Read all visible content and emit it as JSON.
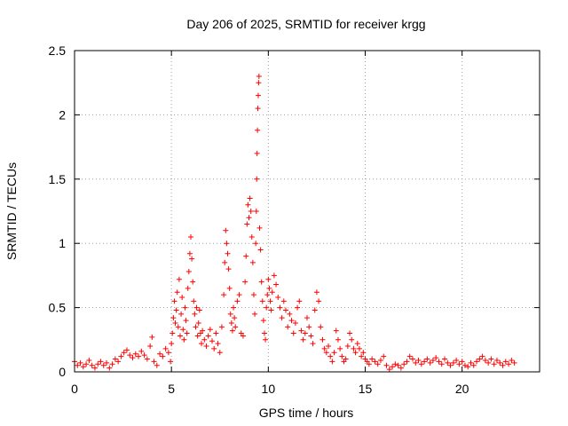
{
  "chart_data": {
    "type": "scatter",
    "title": "Day 206 of 2025, SRMTID for receiver krgg",
    "xlabel": "GPS time / hours",
    "ylabel": "SRMTID / TECUs",
    "xlim": [
      0,
      24
    ],
    "ylim": [
      0,
      2.5
    ],
    "x_ticks": [
      0,
      5,
      10,
      15,
      20
    ],
    "x_tick_labels": [
      "0",
      "5",
      "10",
      "15",
      "20"
    ],
    "y_ticks": [
      0,
      0.5,
      1,
      1.5,
      2,
      2.5
    ],
    "y_tick_labels": [
      "0",
      "0.5",
      "1",
      "1.5",
      "2",
      "2.5"
    ],
    "grid": true,
    "marker": "plus",
    "marker_color": "#ff0000",
    "series": [
      {
        "name": "SRMTID",
        "points": [
          [
            0.0,
            0.08
          ],
          [
            0.15,
            0.05
          ],
          [
            0.3,
            0.07
          ],
          [
            0.45,
            0.04
          ],
          [
            0.6,
            0.06
          ],
          [
            0.75,
            0.09
          ],
          [
            0.9,
            0.05
          ],
          [
            1.05,
            0.03
          ],
          [
            1.2,
            0.06
          ],
          [
            1.35,
            0.08
          ],
          [
            1.5,
            0.05
          ],
          [
            1.65,
            0.07
          ],
          [
            1.8,
            0.03
          ],
          [
            1.95,
            0.06
          ],
          [
            2.1,
            0.1
          ],
          [
            2.25,
            0.08
          ],
          [
            2.4,
            0.12
          ],
          [
            2.55,
            0.15
          ],
          [
            2.7,
            0.17
          ],
          [
            2.85,
            0.13
          ],
          [
            3.0,
            0.11
          ],
          [
            3.15,
            0.14
          ],
          [
            3.3,
            0.12
          ],
          [
            3.45,
            0.16
          ],
          [
            3.6,
            0.13
          ],
          [
            3.75,
            0.1
          ],
          [
            3.9,
            0.2
          ],
          [
            4.0,
            0.27
          ],
          [
            4.1,
            0.08
          ],
          [
            4.25,
            0.05
          ],
          [
            4.4,
            0.14
          ],
          [
            4.55,
            0.12
          ],
          [
            4.7,
            0.18
          ],
          [
            4.85,
            0.15
          ],
          [
            4.95,
            0.08
          ],
          [
            5.0,
            0.22
          ],
          [
            5.05,
            0.3
          ],
          [
            5.1,
            0.42
          ],
          [
            5.15,
            0.55
          ],
          [
            5.2,
            0.38
          ],
          [
            5.25,
            0.48
          ],
          [
            5.3,
            0.62
          ],
          [
            5.35,
            0.35
          ],
          [
            5.4,
            0.72
          ],
          [
            5.45,
            0.28
          ],
          [
            5.5,
            0.45
          ],
          [
            5.55,
            0.58
          ],
          [
            5.6,
            0.33
          ],
          [
            5.65,
            0.25
          ],
          [
            5.7,
            0.5
          ],
          [
            5.75,
            0.4
          ],
          [
            5.8,
            0.3
          ],
          [
            5.85,
            0.65
          ],
          [
            5.9,
            0.78
          ],
          [
            5.95,
            0.92
          ],
          [
            6.0,
            1.05
          ],
          [
            6.05,
            0.88
          ],
          [
            6.1,
            0.7
          ],
          [
            6.15,
            0.55
          ],
          [
            6.2,
            0.45
          ],
          [
            6.25,
            0.35
          ],
          [
            6.3,
            0.5
          ],
          [
            6.35,
            0.28
          ],
          [
            6.4,
            0.38
          ],
          [
            6.45,
            0.48
          ],
          [
            6.5,
            0.3
          ],
          [
            6.55,
            0.22
          ],
          [
            6.6,
            0.32
          ],
          [
            6.7,
            0.25
          ],
          [
            6.8,
            0.2
          ],
          [
            6.9,
            0.28
          ],
          [
            7.0,
            0.33
          ],
          [
            7.1,
            0.24
          ],
          [
            7.2,
            0.18
          ],
          [
            7.3,
            0.3
          ],
          [
            7.4,
            0.22
          ],
          [
            7.5,
            0.15
          ],
          [
            7.6,
            0.35
          ],
          [
            7.7,
            0.6
          ],
          [
            7.75,
            0.85
          ],
          [
            7.8,
            1.1
          ],
          [
            7.85,
            1.0
          ],
          [
            7.9,
            0.92
          ],
          [
            7.95,
            0.8
          ],
          [
            8.0,
            0.65
          ],
          [
            8.05,
            0.45
          ],
          [
            8.1,
            0.38
          ],
          [
            8.15,
            0.32
          ],
          [
            8.2,
            0.5
          ],
          [
            8.25,
            0.42
          ],
          [
            8.3,
            0.35
          ],
          [
            8.4,
            0.55
          ],
          [
            8.5,
            0.6
          ],
          [
            8.6,
            0.3
          ],
          [
            8.7,
            0.28
          ],
          [
            8.8,
            0.7
          ],
          [
            8.85,
            0.9
          ],
          [
            8.9,
            1.15
          ],
          [
            8.95,
            1.3
          ],
          [
            9.0,
            1.2
          ],
          [
            9.05,
            1.35
          ],
          [
            9.1,
            1.25
          ],
          [
            9.15,
            1.05
          ],
          [
            9.2,
            0.85
          ],
          [
            9.25,
            0.6
          ],
          [
            9.3,
            0.45
          ],
          [
            9.35,
            1.0
          ],
          [
            9.38,
            1.25
          ],
          [
            9.4,
            1.5
          ],
          [
            9.42,
            1.7
          ],
          [
            9.44,
            1.88
          ],
          [
            9.46,
            2.05
          ],
          [
            9.48,
            2.15
          ],
          [
            9.5,
            2.25
          ],
          [
            9.52,
            2.3
          ],
          [
            9.55,
            1.12
          ],
          [
            9.6,
            0.95
          ],
          [
            9.65,
            0.7
          ],
          [
            9.7,
            0.55
          ],
          [
            9.75,
            0.4
          ],
          [
            9.8,
            0.3
          ],
          [
            9.85,
            0.25
          ],
          [
            9.9,
            0.5
          ],
          [
            9.95,
            0.6
          ],
          [
            10.0,
            0.72
          ],
          [
            10.05,
            0.65
          ],
          [
            10.1,
            0.55
          ],
          [
            10.15,
            0.48
          ],
          [
            10.2,
            0.62
          ],
          [
            10.3,
            0.75
          ],
          [
            10.4,
            0.68
          ],
          [
            10.5,
            0.58
          ],
          [
            10.6,
            0.5
          ],
          [
            10.7,
            0.42
          ],
          [
            10.8,
            0.55
          ],
          [
            10.9,
            0.48
          ],
          [
            11.0,
            0.35
          ],
          [
            11.1,
            0.45
          ],
          [
            11.2,
            0.4
          ],
          [
            11.3,
            0.3
          ],
          [
            11.4,
            0.38
          ],
          [
            11.5,
            0.5
          ],
          [
            11.6,
            0.55
          ],
          [
            11.7,
            0.32
          ],
          [
            11.8,
            0.25
          ],
          [
            11.9,
            0.3
          ],
          [
            12.0,
            0.42
          ],
          [
            12.1,
            0.35
          ],
          [
            12.2,
            0.28
          ],
          [
            12.3,
            0.22
          ],
          [
            12.4,
            0.48
          ],
          [
            12.5,
            0.62
          ],
          [
            12.6,
            0.55
          ],
          [
            12.7,
            0.35
          ],
          [
            12.8,
            0.25
          ],
          [
            12.9,
            0.18
          ],
          [
            13.0,
            0.15
          ],
          [
            13.1,
            0.2
          ],
          [
            13.2,
            0.12
          ],
          [
            13.3,
            0.08
          ],
          [
            13.4,
            0.15
          ],
          [
            13.5,
            0.32
          ],
          [
            13.6,
            0.25
          ],
          [
            13.7,
            0.18
          ],
          [
            13.8,
            0.12
          ],
          [
            13.9,
            0.08
          ],
          [
            14.0,
            0.1
          ],
          [
            14.1,
            0.2
          ],
          [
            14.2,
            0.3
          ],
          [
            14.3,
            0.25
          ],
          [
            14.4,
            0.18
          ],
          [
            14.5,
            0.15
          ],
          [
            14.6,
            0.22
          ],
          [
            14.7,
            0.18
          ],
          [
            14.8,
            0.12
          ],
          [
            14.9,
            0.15
          ],
          [
            15.0,
            0.1
          ],
          [
            15.1,
            0.08
          ],
          [
            15.2,
            0.06
          ],
          [
            15.35,
            0.1
          ],
          [
            15.5,
            0.08
          ],
          [
            15.65,
            0.06
          ],
          [
            15.8,
            0.09
          ],
          [
            15.95,
            0.12
          ],
          [
            16.1,
            0.05
          ],
          [
            16.25,
            0.02
          ],
          [
            16.4,
            0.04
          ],
          [
            16.55,
            0.06
          ],
          [
            16.7,
            0.05
          ],
          [
            16.85,
            0.03
          ],
          [
            17.0,
            0.06
          ],
          [
            17.15,
            0.08
          ],
          [
            17.3,
            0.12
          ],
          [
            17.45,
            0.1
          ],
          [
            17.6,
            0.07
          ],
          [
            17.75,
            0.09
          ],
          [
            17.9,
            0.06
          ],
          [
            18.05,
            0.08
          ],
          [
            18.2,
            0.1
          ],
          [
            18.35,
            0.07
          ],
          [
            18.5,
            0.09
          ],
          [
            18.65,
            0.11
          ],
          [
            18.8,
            0.08
          ],
          [
            18.95,
            0.06
          ],
          [
            19.1,
            0.1
          ],
          [
            19.25,
            0.07
          ],
          [
            19.4,
            0.05
          ],
          [
            19.55,
            0.07
          ],
          [
            19.7,
            0.09
          ],
          [
            19.85,
            0.06
          ],
          [
            20.0,
            0.08
          ],
          [
            20.15,
            0.05
          ],
          [
            20.3,
            0.04
          ],
          [
            20.45,
            0.07
          ],
          [
            20.6,
            0.05
          ],
          [
            20.75,
            0.08
          ],
          [
            20.9,
            0.1
          ],
          [
            21.05,
            0.12
          ],
          [
            21.2,
            0.09
          ],
          [
            21.35,
            0.07
          ],
          [
            21.5,
            0.1
          ],
          [
            21.65,
            0.06
          ],
          [
            21.8,
            0.09
          ],
          [
            21.95,
            0.07
          ],
          [
            22.1,
            0.05
          ],
          [
            22.25,
            0.08
          ],
          [
            22.4,
            0.06
          ],
          [
            22.55,
            0.09
          ],
          [
            22.7,
            0.07
          ]
        ]
      }
    ]
  }
}
